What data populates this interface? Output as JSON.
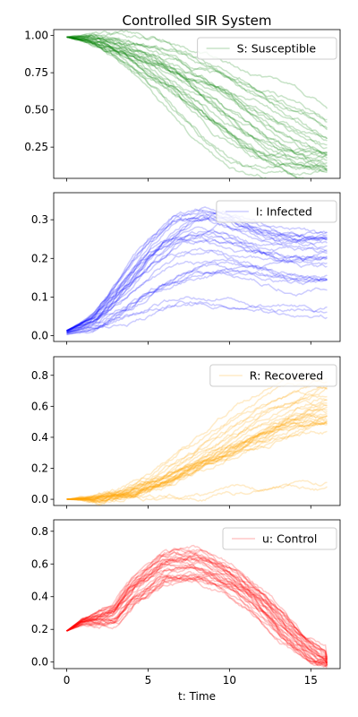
{
  "chart_data": {
    "title": "Controlled SIR System",
    "xlabel": "t: Time",
    "xlim": [
      -0.8,
      16.8
    ],
    "xticks": [
      0,
      5,
      10,
      15
    ],
    "n_trajectories": 30,
    "t_end": 16,
    "subplots": [
      {
        "type": "line",
        "legend": "S: Susceptible",
        "legend_loc": "upper right",
        "color": "#008000",
        "alpha": 0.22,
        "ylim": [
          0.04,
          1.04
        ],
        "yticks": [
          0.25,
          0.5,
          0.75,
          1.0
        ],
        "ytick_labels": [
          "0.25",
          "0.50",
          "0.75",
          "1.00"
        ],
        "mean_profile": {
          "t": [
            0,
            2,
            4,
            6,
            8,
            10,
            12,
            14,
            16
          ],
          "y": [
            0.99,
            0.97,
            0.89,
            0.78,
            0.64,
            0.48,
            0.32,
            0.2,
            0.12
          ]
        },
        "spread": 0.1
      },
      {
        "type": "line",
        "legend": "I: Infected",
        "legend_loc": "upper right",
        "color": "#0000ff",
        "alpha": 0.2,
        "ylim": [
          -0.015,
          0.37
        ],
        "yticks": [
          0.0,
          0.1,
          0.2,
          0.3
        ],
        "ytick_labels": [
          "0.0",
          "0.1",
          "0.2",
          "0.3"
        ],
        "mean_profile": {
          "t": [
            0,
            2,
            4,
            6,
            8,
            10,
            12,
            14,
            16
          ],
          "y": [
            0.01,
            0.04,
            0.11,
            0.18,
            0.23,
            0.24,
            0.22,
            0.2,
            0.19
          ]
        },
        "spread": 0.06
      },
      {
        "type": "line",
        "legend": "R: Recovered",
        "legend_loc": "upper right",
        "color": "#ffa500",
        "alpha": 0.22,
        "ylim": [
          -0.04,
          0.92
        ],
        "yticks": [
          0.0,
          0.2,
          0.4,
          0.6,
          0.8
        ],
        "ytick_labels": [
          "0.0",
          "0.2",
          "0.4",
          "0.6",
          "0.8"
        ],
        "mean_profile": {
          "t": [
            0,
            2,
            4,
            6,
            8,
            10,
            12,
            14,
            16
          ],
          "y": [
            0.0,
            0.01,
            0.05,
            0.13,
            0.24,
            0.36,
            0.48,
            0.59,
            0.67
          ]
        },
        "spread": 0.12
      },
      {
        "type": "line",
        "legend": "u: Control",
        "legend_loc": "upper right",
        "color": "#ff0000",
        "alpha": 0.22,
        "ylim": [
          -0.04,
          0.87
        ],
        "yticks": [
          0.0,
          0.2,
          0.4,
          0.6,
          0.8
        ],
        "ytick_labels": [
          "0.0",
          "0.2",
          "0.4",
          "0.6",
          "0.8"
        ],
        "mean_profile": {
          "t": [
            0,
            1,
            2,
            3,
            4,
            6,
            8,
            10,
            12,
            14,
            16
          ],
          "y": [
            0.19,
            0.25,
            0.27,
            0.3,
            0.42,
            0.58,
            0.6,
            0.52,
            0.37,
            0.16,
            0.0
          ]
        },
        "spread": 0.1
      }
    ]
  }
}
